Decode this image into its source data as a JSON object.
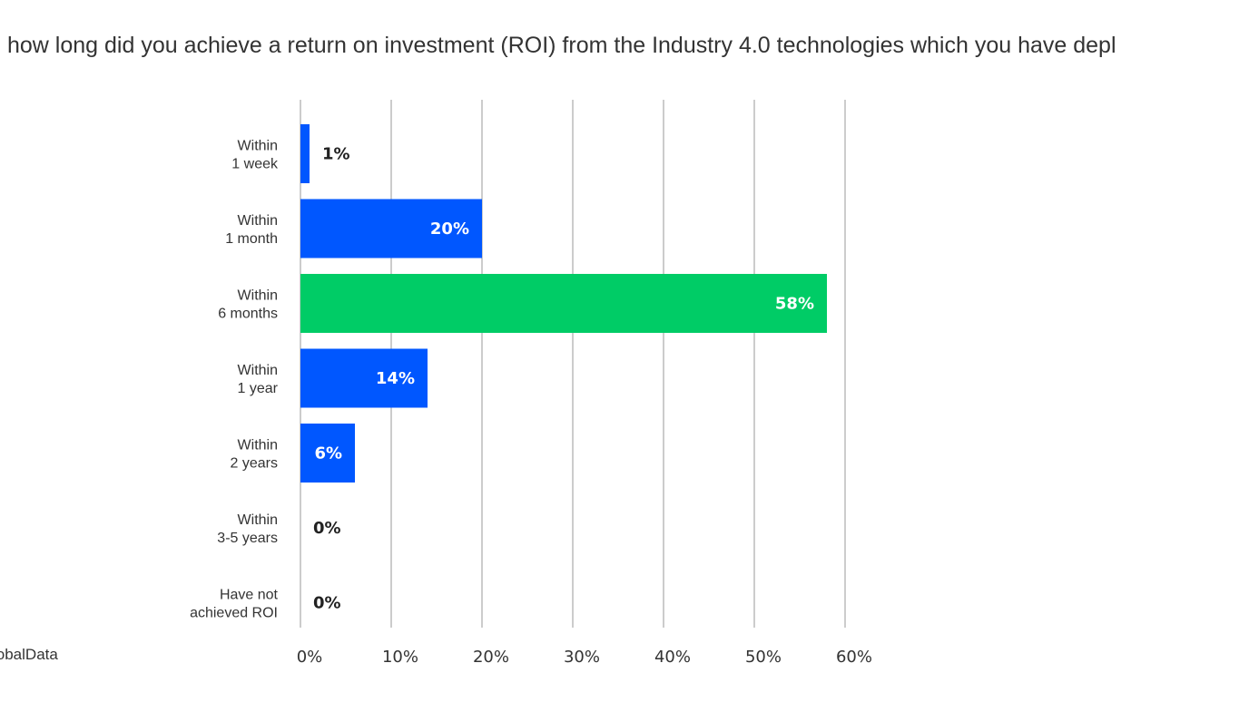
{
  "title": "how long did you achieve a return on investment (ROI) from the Industry 4.0 technologies which you have depl",
  "source": "lobalData",
  "colors": {
    "bar": "#0057ff",
    "highlight": "#00cc66",
    "grid": "#9a9a9a",
    "label_inside": "#ffffff",
    "label_outside": "#222222"
  },
  "chart_data": {
    "type": "bar",
    "orientation": "horizontal",
    "title": "how long did you achieve a return on investment (ROI) from the Industry 4.0 technologies which you have depl",
    "categories": [
      [
        "Within",
        "1 week"
      ],
      [
        "Within",
        "1 month"
      ],
      [
        "Within",
        "6 months"
      ],
      [
        "Within",
        "1 year"
      ],
      [
        "Within",
        "2 years"
      ],
      [
        "Within",
        "3-5 years"
      ],
      [
        "Have not",
        "achieved ROI"
      ]
    ],
    "values": [
      1,
      20,
      58,
      14,
      6,
      0,
      0
    ],
    "data_labels": [
      "1%",
      "20%",
      "58%",
      "14%",
      "6%",
      "0%",
      "0%"
    ],
    "highlight_index": 2,
    "xlim": [
      0,
      60
    ],
    "xticks": [
      0,
      10,
      20,
      30,
      40,
      50,
      60
    ],
    "xtick_labels": [
      "0%",
      "10%",
      "20%",
      "30%",
      "40%",
      "50%",
      "60%"
    ],
    "grid": "vertical",
    "legend": "none",
    "xlabel": "",
    "ylabel": ""
  }
}
